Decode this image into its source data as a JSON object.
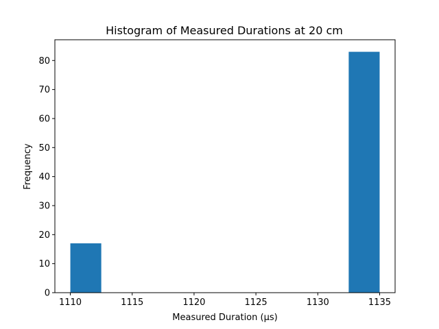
{
  "chart_data": {
    "type": "bar",
    "title": "Histogram of Measured Durations at 20 cm",
    "xlabel": "Measured Duration (µs)",
    "ylabel": "Frequency",
    "bins": [
      {
        "start": 1110.0,
        "end": 1112.5,
        "count": 17
      },
      {
        "start": 1112.5,
        "end": 1115.0,
        "count": 0
      },
      {
        "start": 1115.0,
        "end": 1117.5,
        "count": 0
      },
      {
        "start": 1117.5,
        "end": 1120.0,
        "count": 0
      },
      {
        "start": 1120.0,
        "end": 1122.5,
        "count": 0
      },
      {
        "start": 1122.5,
        "end": 1125.0,
        "count": 0
      },
      {
        "start": 1125.0,
        "end": 1127.5,
        "count": 0
      },
      {
        "start": 1127.5,
        "end": 1130.0,
        "count": 0
      },
      {
        "start": 1130.0,
        "end": 1132.5,
        "count": 0
      },
      {
        "start": 1132.5,
        "end": 1135.0,
        "count": 83
      }
    ],
    "xlim": [
      1108.75,
      1136.25
    ],
    "ylim": [
      0,
      87.15
    ],
    "xticks": [
      1110,
      1115,
      1120,
      1125,
      1130,
      1135
    ],
    "yticks": [
      0,
      10,
      20,
      30,
      40,
      50,
      60,
      70,
      80
    ],
    "bar_color": "#1f77b4",
    "grid": false
  }
}
